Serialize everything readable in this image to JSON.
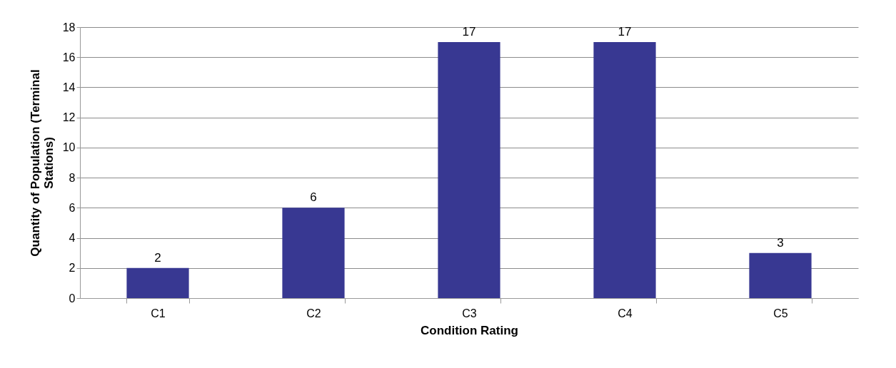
{
  "chart_data": {
    "type": "bar",
    "xlabel": "Condition Rating",
    "ylabel": "Quantity of Population (Terminal Stations)",
    "categories": [
      "C1",
      "C2",
      "C3",
      "C4",
      "C5"
    ],
    "series": [
      {
        "color": "#383892",
        "values": [
          2,
          6,
          17,
          17,
          3
        ]
      }
    ],
    "ylim": [
      0,
      18
    ],
    "yticks": [
      0,
      2,
      4,
      6,
      8,
      10,
      12,
      14,
      16,
      18
    ],
    "grid": "y",
    "data_labels": true
  }
}
